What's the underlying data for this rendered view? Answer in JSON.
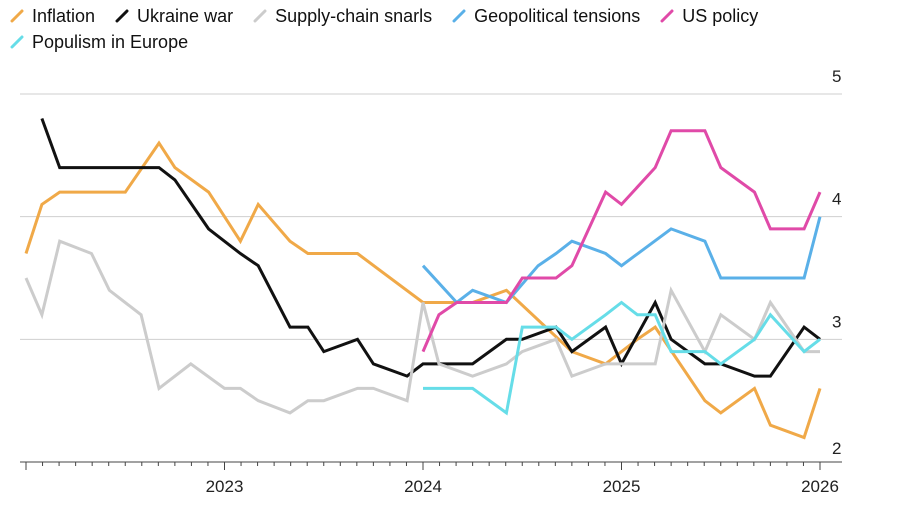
{
  "chart_data": {
    "type": "line",
    "title": "",
    "xlabel": "",
    "ylabel": "",
    "ylim": [
      2,
      5
    ],
    "xlim": [
      2022.0,
      2026.0
    ],
    "grid": true,
    "legend_position": "top-left",
    "y_ticks": [
      "2",
      "3",
      "4",
      "5"
    ],
    "x_ticks": [
      "2023",
      "2024",
      "2025",
      "2026"
    ],
    "series": [
      {
        "name": "Inflation",
        "color": "#f0a948",
        "x": [
          2022.0,
          2022.08,
          2022.17,
          2022.5,
          2022.67,
          2022.75,
          2022.92,
          2023.08,
          2023.17,
          2023.33,
          2023.42,
          2023.67,
          2024.0,
          2024.25,
          2024.42,
          2024.75,
          2024.92,
          2025.08,
          2025.17,
          2025.42,
          2025.5,
          2025.67,
          2025.75,
          2025.92,
          2026.0
        ],
        "y": [
          3.7,
          4.1,
          4.2,
          4.2,
          4.6,
          4.4,
          4.2,
          3.8,
          4.1,
          3.8,
          3.7,
          3.7,
          3.3,
          3.3,
          3.4,
          2.9,
          2.8,
          3.0,
          3.1,
          2.5,
          2.4,
          2.6,
          2.3,
          2.2,
          2.6
        ]
      },
      {
        "name": "Ukraine war",
        "color": "#111111",
        "x": [
          2022.08,
          2022.17,
          2022.67,
          2022.75,
          2022.92,
          2023.08,
          2023.17,
          2023.33,
          2023.42,
          2023.5,
          2023.67,
          2023.75,
          2023.92,
          2024.0,
          2024.25,
          2024.42,
          2024.5,
          2024.67,
          2024.75,
          2024.92,
          2025.0,
          2025.17,
          2025.25,
          2025.42,
          2025.5,
          2025.67,
          2025.75,
          2025.92,
          2026.0
        ],
        "y": [
          4.8,
          4.4,
          4.4,
          4.3,
          3.9,
          3.7,
          3.6,
          3.1,
          3.1,
          2.9,
          3.0,
          2.8,
          2.7,
          2.8,
          2.8,
          3.0,
          3.0,
          3.1,
          2.9,
          3.1,
          2.8,
          3.3,
          3.0,
          2.8,
          2.8,
          2.7,
          2.7,
          3.1,
          3.0
        ]
      },
      {
        "name": "Supply-chain snarls",
        "color": "#cccccc",
        "x": [
          2022.0,
          2022.08,
          2022.17,
          2022.33,
          2022.42,
          2022.58,
          2022.67,
          2022.83,
          2023.0,
          2023.08,
          2023.17,
          2023.33,
          2023.42,
          2023.5,
          2023.67,
          2023.75,
          2023.92,
          2024.0,
          2024.08,
          2024.25,
          2024.42,
          2024.5,
          2024.67,
          2024.75,
          2024.92,
          2025.0,
          2025.17,
          2025.25,
          2025.42,
          2025.5,
          2025.67,
          2025.75,
          2025.92,
          2026.0
        ],
        "y": [
          3.5,
          3.2,
          3.8,
          3.7,
          3.4,
          3.2,
          2.6,
          2.8,
          2.6,
          2.6,
          2.5,
          2.4,
          2.5,
          2.5,
          2.6,
          2.6,
          2.5,
          3.3,
          2.8,
          2.7,
          2.8,
          2.9,
          3.0,
          2.7,
          2.8,
          2.8,
          2.8,
          3.4,
          2.9,
          3.2,
          3.0,
          3.3,
          2.9,
          2.9
        ]
      },
      {
        "name": "Geopolitical tensions",
        "color": "#5ab0e8",
        "x": [
          2024.0,
          2024.17,
          2024.25,
          2024.42,
          2024.58,
          2024.67,
          2024.75,
          2024.92,
          2025.0,
          2025.25,
          2025.42,
          2025.5,
          2025.92,
          2026.0
        ],
        "y": [
          3.6,
          3.3,
          3.4,
          3.3,
          3.6,
          3.7,
          3.8,
          3.7,
          3.6,
          3.9,
          3.8,
          3.5,
          3.5,
          4.0
        ]
      },
      {
        "name": "US policy",
        "color": "#e04aa8",
        "x": [
          2024.0,
          2024.08,
          2024.17,
          2024.42,
          2024.5,
          2024.67,
          2024.75,
          2024.92,
          2025.0,
          2025.17,
          2025.25,
          2025.42,
          2025.5,
          2025.67,
          2025.75,
          2025.92,
          2026.0
        ],
        "y": [
          2.9,
          3.2,
          3.3,
          3.3,
          3.5,
          3.5,
          3.6,
          4.2,
          4.1,
          4.4,
          4.7,
          4.7,
          4.4,
          4.2,
          3.9,
          3.9,
          4.2
        ]
      },
      {
        "name": "Populism in Europe",
        "color": "#66dde8",
        "x": [
          2024.0,
          2024.25,
          2024.42,
          2024.5,
          2024.67,
          2024.75,
          2024.92,
          2025.0,
          2025.08,
          2025.17,
          2025.25,
          2025.42,
          2025.5,
          2025.67,
          2025.75,
          2025.92,
          2026.0
        ],
        "y": [
          2.6,
          2.6,
          2.4,
          3.1,
          3.1,
          3.0,
          3.2,
          3.3,
          3.2,
          3.2,
          2.9,
          2.9,
          2.8,
          3.0,
          3.2,
          2.9,
          3.0
        ]
      }
    ]
  }
}
